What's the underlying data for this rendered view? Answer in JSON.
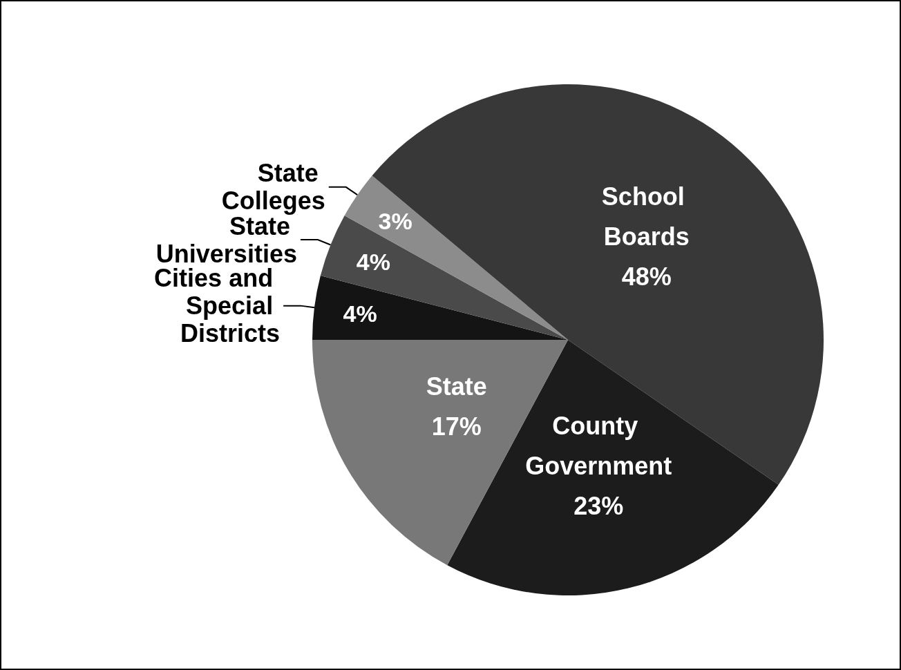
{
  "chart_data": {
    "type": "pie",
    "categories": [
      "Cities and Special Districts",
      "State Universities",
      "State Colleges",
      "School Boards",
      "County Government",
      "State"
    ],
    "values": [
      4,
      4,
      3,
      48,
      23,
      17
    ],
    "value_labels": [
      "4%",
      "4%",
      "3%",
      "48%",
      "23%",
      "17%"
    ],
    "colors": [
      "#141414",
      "#4a4a4a",
      "#8c8c8c",
      "#383838",
      "#1c1c1c",
      "#787878"
    ],
    "legend": false
  }
}
